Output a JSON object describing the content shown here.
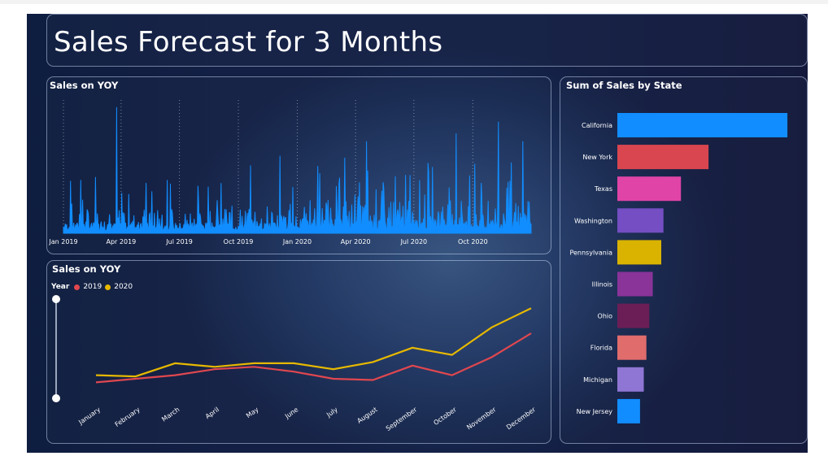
{
  "page": {
    "title": "Sales Forecast for 3 Months"
  },
  "chart_data": [
    {
      "type": "area",
      "title": "Sales on YOY",
      "x_tick_labels": [
        "Jan 2019",
        "Apr 2019",
        "Jul 2019",
        "Oct 2019",
        "Jan 2020",
        "Apr 2020",
        "Jul 2020",
        "Oct 2020"
      ],
      "x_range": [
        "2019-01-01",
        "2020-12-31"
      ],
      "series_color": "#118dff",
      "peaks": [
        {
          "x": "2019-01-28",
          "y": 55
        },
        {
          "x": "2019-02-20",
          "y": 58
        },
        {
          "x": "2019-03-25",
          "y": 130
        },
        {
          "x": "2019-05-10",
          "y": 52
        },
        {
          "x": "2019-06-12",
          "y": 55
        },
        {
          "x": "2019-08-15",
          "y": 48
        },
        {
          "x": "2019-10-20",
          "y": 70
        },
        {
          "x": "2019-12-05",
          "y": 80
        },
        {
          "x": "2020-02-05",
          "y": 62
        },
        {
          "x": "2020-03-15",
          "y": 78
        },
        {
          "x": "2020-04-18",
          "y": 95
        },
        {
          "x": "2020-06-25",
          "y": 60
        },
        {
          "x": "2020-09-05",
          "y": 103
        },
        {
          "x": "2020-11-10",
          "y": 115
        },
        {
          "x": "2020-12-18",
          "y": 95
        }
      ]
    },
    {
      "type": "line",
      "title": "Sales on YOY",
      "legend_title": "Year",
      "categories": [
        "January",
        "February",
        "March",
        "April",
        "May",
        "June",
        "July",
        "August",
        "September",
        "October",
        "November",
        "December"
      ],
      "series": [
        {
          "name": "2019",
          "color": "#e0474f",
          "values": [
            14,
            17,
            20,
            25,
            27,
            23,
            17,
            16,
            28,
            20,
            35,
            55
          ]
        },
        {
          "name": "2020",
          "color": "#e6b800",
          "values": [
            20,
            19,
            30,
            27,
            30,
            30,
            25,
            31,
            43,
            37,
            60,
            76
          ]
        }
      ],
      "ylim": [
        0,
        85
      ]
    },
    {
      "type": "bar",
      "orientation": "horizontal",
      "title": "Sum of Sales by State",
      "categories": [
        "California",
        "New York",
        "Texas",
        "Washington",
        "Pennsylvania",
        "Illinois",
        "Ohio",
        "Florida",
        "Michigan",
        "New Jersey"
      ],
      "values": [
        457,
        245,
        171,
        124,
        118,
        95,
        86,
        78,
        71,
        61
      ],
      "colors": [
        "#118dff",
        "#d94650",
        "#e044a7",
        "#744ec2",
        "#d9b300",
        "#8a3399",
        "#6b1e56",
        "#e06c6c",
        "#8f76d4",
        "#118dff"
      ],
      "xlim": [
        0,
        470
      ]
    }
  ]
}
